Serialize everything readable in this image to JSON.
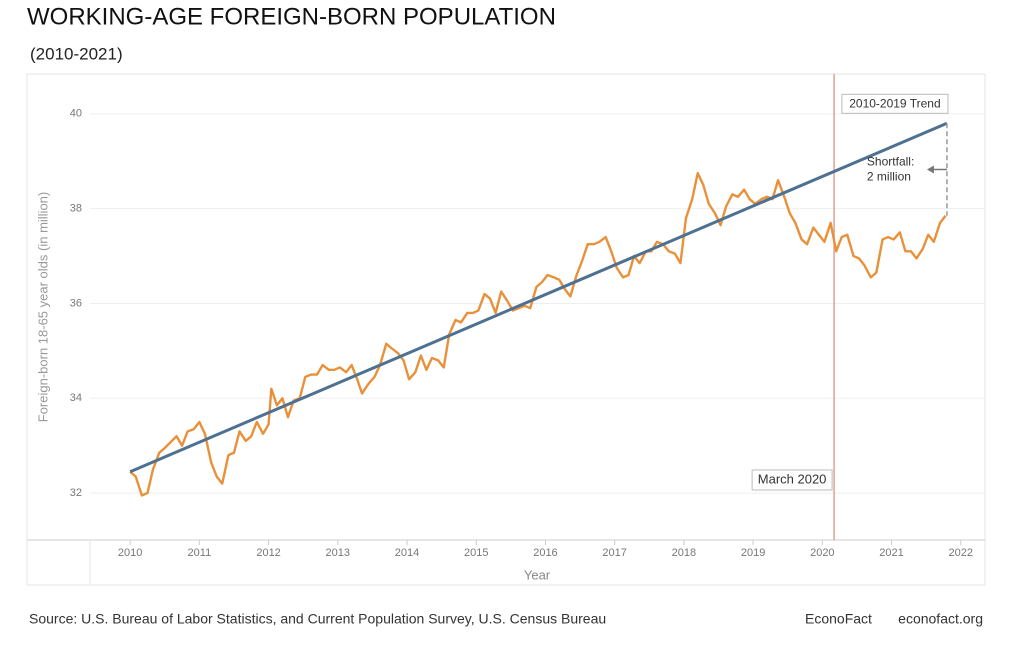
{
  "chart_data": {
    "type": "line",
    "title": "WORKING-AGE FOREIGN-BORN POPULATION",
    "subtitle": "(2010-2021)",
    "y_label": "Foreign-born 18-65 year olds (in million)",
    "x_label": "Year",
    "source": "Source: U.S. Bureau of Labor Statistics, and Current Population Survey, U.S. Census Bureau",
    "brand": "EconoFact",
    "website": "econofact.org",
    "xlim": [
      2009.42,
      2022.35
    ],
    "ylim": [
      31.01,
      40.84
    ],
    "xticks": [
      2010,
      2011,
      2012,
      2013,
      2014,
      2015,
      2016,
      2017,
      2018,
      2019,
      2020,
      2021,
      2022
    ],
    "yticks": [
      32,
      34,
      36,
      38,
      40
    ],
    "grid": true,
    "series": [
      {
        "color": "#e8913a",
        "x": [
          2010.0,
          2010.08,
          2010.17,
          2010.25,
          2010.33,
          2010.42,
          2010.5,
          2010.67,
          2010.75,
          2010.83,
          2010.92,
          2011.0,
          2011.08,
          2011.17,
          2011.25,
          2011.33,
          2011.42,
          2011.5,
          2011.58,
          2011.67,
          2011.75,
          2011.83,
          2011.92,
          2012.0,
          2012.04,
          2012.12,
          2012.2,
          2012.28,
          2012.36,
          2012.45,
          2012.53,
          2012.62,
          2012.7,
          2012.78,
          2012.87,
          2012.95,
          2013.03,
          2013.12,
          2013.2,
          2013.28,
          2013.35,
          2013.44,
          2013.53,
          2013.61,
          2013.7,
          2013.78,
          2013.87,
          2013.95,
          2014.03,
          2014.12,
          2014.2,
          2014.28,
          2014.36,
          2014.45,
          2014.53,
          2014.61,
          2014.7,
          2014.78,
          2014.87,
          2014.95,
          2015.03,
          2015.12,
          2015.2,
          2015.28,
          2015.36,
          2015.45,
          2015.53,
          2015.61,
          2015.7,
          2015.78,
          2015.87,
          2015.95,
          2016.03,
          2016.12,
          2016.2,
          2016.28,
          2016.36,
          2016.45,
          2016.53,
          2016.61,
          2016.7,
          2016.78,
          2016.87,
          2016.95,
          2017.03,
          2017.12,
          2017.2,
          2017.28,
          2017.36,
          2017.45,
          2017.53,
          2017.61,
          2017.7,
          2017.78,
          2017.87,
          2017.95,
          2018.03,
          2018.12,
          2018.2,
          2018.28,
          2018.36,
          2018.45,
          2018.53,
          2018.61,
          2018.7,
          2018.78,
          2018.87,
          2018.95,
          2019.03,
          2019.12,
          2019.2,
          2019.28,
          2019.36,
          2019.45,
          2019.53,
          2019.61,
          2019.7,
          2019.78,
          2019.87,
          2019.95,
          2020.03,
          2020.12,
          2020.2,
          2020.28,
          2020.36,
          2020.45,
          2020.53,
          2020.61,
          2020.7,
          2020.78,
          2020.87,
          2020.95,
          2021.03,
          2021.12,
          2021.2,
          2021.28,
          2021.36,
          2021.45,
          2021.53,
          2021.61,
          2021.7,
          2021.78
        ],
        "values": [
          32.45,
          32.35,
          31.95,
          32.0,
          32.5,
          32.85,
          32.95,
          33.2,
          33.0,
          33.3,
          33.35,
          33.5,
          33.25,
          32.65,
          32.35,
          32.2,
          32.8,
          32.85,
          33.3,
          33.1,
          33.2,
          33.5,
          33.25,
          33.45,
          34.2,
          33.85,
          34.0,
          33.6,
          33.95,
          34.0,
          34.45,
          34.5,
          34.5,
          34.7,
          34.6,
          34.6,
          34.65,
          34.55,
          34.7,
          34.4,
          34.1,
          34.3,
          34.45,
          34.7,
          35.15,
          35.05,
          34.95,
          34.8,
          34.4,
          34.55,
          34.9,
          34.6,
          34.85,
          34.8,
          34.65,
          35.35,
          35.65,
          35.6,
          35.8,
          35.8,
          35.85,
          36.2,
          36.1,
          35.8,
          36.25,
          36.05,
          35.85,
          35.9,
          35.95,
          35.9,
          36.35,
          36.45,
          36.6,
          36.55,
          36.5,
          36.3,
          36.15,
          36.6,
          36.9,
          37.25,
          37.25,
          37.3,
          37.4,
          37.1,
          36.75,
          36.55,
          36.6,
          37.0,
          36.85,
          37.1,
          37.1,
          37.3,
          37.25,
          37.1,
          37.05,
          36.85,
          37.8,
          38.2,
          38.75,
          38.5,
          38.1,
          37.9,
          37.65,
          38.05,
          38.3,
          38.25,
          38.4,
          38.2,
          38.1,
          38.2,
          38.25,
          38.2,
          38.6,
          38.25,
          37.9,
          37.7,
          37.35,
          37.25,
          37.6,
          37.45,
          37.3,
          37.7,
          37.1,
          37.4,
          37.45,
          37.0,
          36.95,
          36.8,
          36.55,
          36.65,
          37.35,
          37.4,
          37.35,
          37.5,
          37.1,
          37.1,
          36.95,
          37.15,
          37.45,
          37.3,
          37.7,
          37.85
        ]
      },
      {
        "name": "2010-2019 Trend",
        "color": "#4e7191",
        "x": [
          2010.0,
          2021.8
        ],
        "values": [
          32.45,
          39.8
        ]
      }
    ],
    "annotations": [
      {
        "text": "March 2020",
        "x": 2020.17,
        "color": "#e0a090"
      },
      {
        "lines": [
          "Shortfall:",
          "2 million"
        ]
      }
    ]
  }
}
